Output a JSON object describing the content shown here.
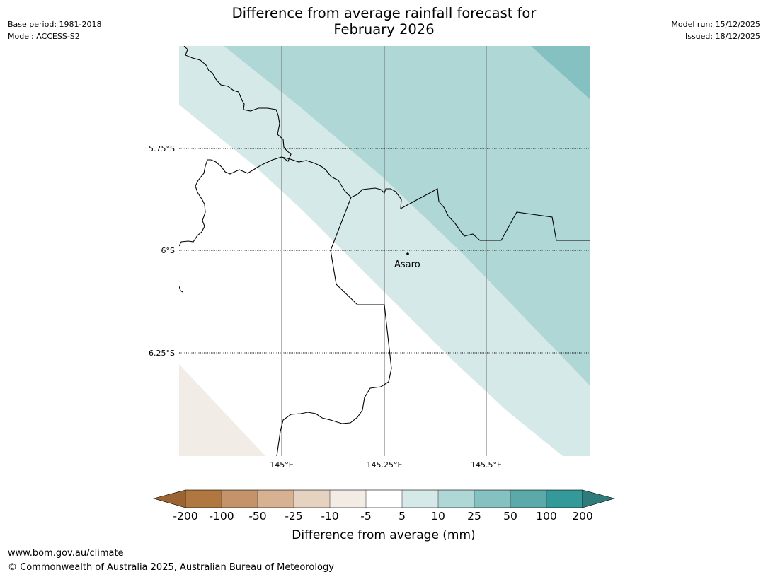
{
  "header": {
    "title_line1": "Difference from average rainfall forecast for",
    "title_line2": "February 2026",
    "base_period": "Base period: 1981-2018",
    "model": "Model: ACCESS-S2",
    "model_run": "Model run: 15/12/2025",
    "issued": "Issued: 18/12/2025"
  },
  "map": {
    "lat_labels": [
      "5.75°S",
      "6°S",
      "6.25°S"
    ],
    "lon_labels": [
      "145°E",
      "145.25°E",
      "145.5°E"
    ],
    "place_label": "Asaro"
  },
  "legend": {
    "title": "Difference from average (mm)",
    "tick_labels": [
      "-200",
      "-100",
      "-50",
      "-25",
      "-10",
      "-5",
      "5",
      "10",
      "25",
      "50",
      "100",
      "200"
    ],
    "colors": [
      "#9b6232",
      "#b07840",
      "#c4936a",
      "#d6b292",
      "#e5d2c0",
      "#f3ece5",
      "#ffffff",
      "#d5e9e8",
      "#aed7d6",
      "#85c1c0",
      "#5ba9a9",
      "#349999",
      "#2f7a7a"
    ]
  },
  "footer": {
    "url": "www.bom.gov.au/climate",
    "copyright": "© Commonwealth of Australia 2025, Australian Bureau of Meteorology"
  }
}
